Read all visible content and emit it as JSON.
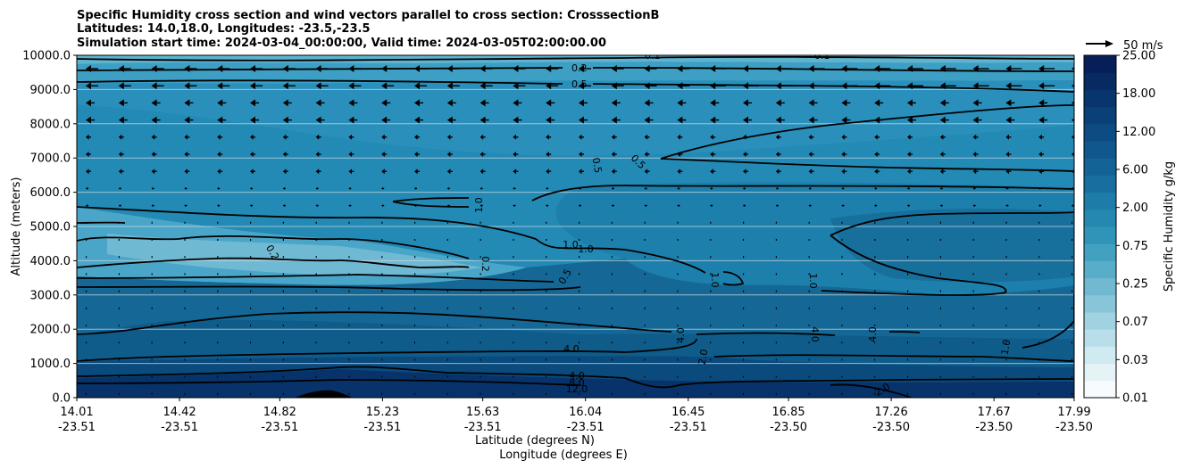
{
  "chart_data": {
    "type": "contour",
    "title_lines": [
      "Specific Humidity cross section and wind vectors parallel to cross section: CrosssectionB",
      "Latitudes: 14.0,18.0, Longitudes: -23.5,-23.5",
      "Simulation start time: 2024-03-04_00:00:00, Valid time: 2024-03-05T02:00:00.00"
    ],
    "ylabel": "Altitude (meters)",
    "xlabel_lat": "Latitude (degrees N)",
    "xlabel_lon": "Longitude (degrees E)",
    "ylim": [
      0,
      10000
    ],
    "y_ticks": [
      "0.0",
      "1000.0",
      "2000.0",
      "3000.0",
      "4000.0",
      "5000.0",
      "6000.0",
      "7000.0",
      "8000.0",
      "9000.0",
      "10000.0"
    ],
    "x_ticks_lat": [
      "14.01",
      "14.42",
      "14.82",
      "15.23",
      "15.63",
      "16.04",
      "16.45",
      "16.85",
      "17.26",
      "17.67",
      "17.99"
    ],
    "x_ticks_lon": [
      "-23.51",
      "-23.51",
      "-23.51",
      "-23.51",
      "-23.51",
      "-23.51",
      "-23.51",
      "-23.50",
      "-23.50",
      "-23.50",
      "-23.50"
    ],
    "colorbar": {
      "label": "Specific Humidity g/kg",
      "tick_labels": [
        "0.01",
        "0.03",
        "0.07",
        "0.25",
        "0.75",
        "2.00",
        "6.00",
        "12.00",
        "18.00",
        "25.00"
      ],
      "colors": [
        "#f7fbfd",
        "#e5f3f7",
        "#d0eaf1",
        "#b8deea",
        "#a0d2e2",
        "#88c5d9",
        "#70b9d1",
        "#58adc8",
        "#42a1c0",
        "#2f94b8",
        "#2588b0",
        "#1e7ca8",
        "#186f9f",
        "#136396",
        "#0f578c",
        "#0c4c82",
        "#0a4078",
        "#08356d",
        "#072a62",
        "#061f58"
      ]
    },
    "wind_key": "50 m/s",
    "contour_labels": [
      "0.1",
      "0.2",
      "0.5",
      "1.0",
      "2.0",
      "4.0",
      "8.0",
      "12.0"
    ]
  }
}
